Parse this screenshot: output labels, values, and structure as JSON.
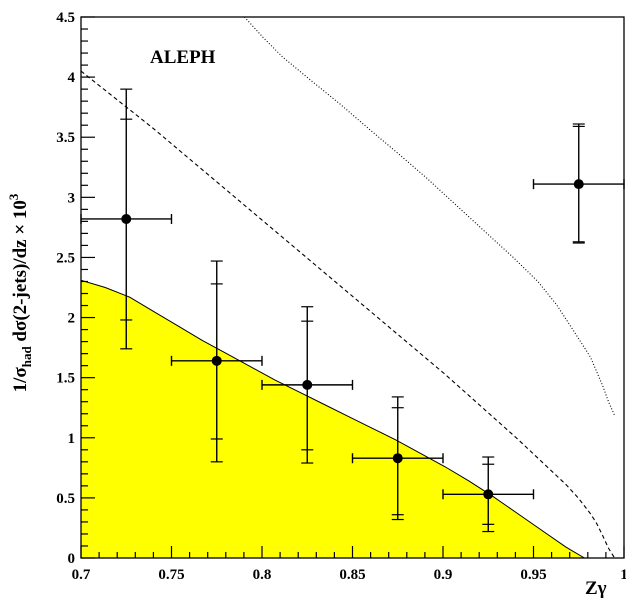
{
  "chart_data": {
    "type": "scatter",
    "title": "",
    "annotation": "ALEPH",
    "xlabel": "Zγ",
    "ylabel": "1/σ_had dσ(2-jets)/dz × 10^3",
    "ylabel_parts": {
      "prefix": "1/σ",
      "subscript": "had",
      "middle": " dσ(2-jets)/dz × 10",
      "superscript": "3"
    },
    "xlim": [
      0.7,
      1.0
    ],
    "ylim": [
      0,
      4.5
    ],
    "x_ticks": [
      "0.7",
      "0.75",
      "0.8",
      "0.85",
      "0.9",
      "0.95",
      "1"
    ],
    "x_tick_values": [
      0.7,
      0.75,
      0.8,
      0.85,
      0.9,
      0.95,
      1.0
    ],
    "y_ticks": [
      "0",
      "0.5",
      "1",
      "1.5",
      "2",
      "2.5",
      "3",
      "3.5",
      "4",
      "4.5"
    ],
    "y_tick_values": [
      0,
      0.5,
      1,
      1.5,
      2,
      2.5,
      3,
      3.5,
      4,
      4.5
    ],
    "grid": false,
    "data_points": [
      {
        "x": 0.725,
        "y": 2.82,
        "x_err": 0.025,
        "stat_lo": 1.98,
        "stat_hi": 3.65,
        "tot_lo": 1.74,
        "tot_hi": 3.9
      },
      {
        "x": 0.775,
        "y": 1.64,
        "x_err": 0.025,
        "stat_lo": 0.99,
        "stat_hi": 2.28,
        "tot_lo": 0.8,
        "tot_hi": 2.47
      },
      {
        "x": 0.825,
        "y": 1.44,
        "x_err": 0.025,
        "stat_lo": 0.9,
        "stat_hi": 1.97,
        "tot_lo": 0.79,
        "tot_hi": 2.09
      },
      {
        "x": 0.875,
        "y": 0.83,
        "x_err": 0.025,
        "stat_lo": 0.36,
        "stat_hi": 1.25,
        "tot_lo": 0.32,
        "tot_hi": 1.34
      },
      {
        "x": 0.925,
        "y": 0.53,
        "x_err": 0.025,
        "stat_lo": 0.28,
        "stat_hi": 0.78,
        "tot_lo": 0.22,
        "tot_hi": 0.84
      },
      {
        "x": 0.975,
        "y": 3.11,
        "x_err": 0.025,
        "stat_lo": 2.63,
        "stat_hi": 3.59,
        "tot_lo": 2.62,
        "tot_hi": 3.61
      }
    ],
    "filled_curve": {
      "color": "#ffff00",
      "x": [
        0.7,
        0.7134,
        0.7268,
        0.7402,
        0.7536,
        0.767,
        0.7804,
        0.7938,
        0.8072,
        0.8206,
        0.834,
        0.8474,
        0.8608,
        0.8742,
        0.8876,
        0.901,
        0.9144,
        0.9278,
        0.9412,
        0.9546,
        0.968,
        0.9781
      ],
      "y": [
        2.31,
        2.25,
        2.17,
        2.05,
        1.93,
        1.81,
        1.7,
        1.59,
        1.48,
        1.38,
        1.28,
        1.18,
        1.08,
        0.98,
        0.87,
        0.76,
        0.64,
        0.51,
        0.37,
        0.23,
        0.09,
        0.0
      ]
    },
    "dashed_curve": {
      "x": [
        0.7,
        0.7134,
        0.7268,
        0.7402,
        0.7536,
        0.767,
        0.7804,
        0.7938,
        0.8072,
        0.8206,
        0.834,
        0.8474,
        0.8608,
        0.8742,
        0.8876,
        0.901,
        0.9144,
        0.9278,
        0.9412,
        0.9546,
        0.968,
        0.9747,
        0.9814,
        0.9848,
        0.9881,
        0.9915,
        0.9948
      ],
      "y": [
        4.05,
        3.89,
        3.73,
        3.57,
        3.4,
        3.23,
        3.06,
        2.89,
        2.72,
        2.55,
        2.38,
        2.21,
        2.04,
        1.87,
        1.7,
        1.53,
        1.35,
        1.17,
        0.99,
        0.8,
        0.61,
        0.5,
        0.37,
        0.29,
        0.19,
        0.08,
        0.0
      ]
    },
    "dotted_curve": {
      "x": [
        0.7903,
        0.8006,
        0.8112,
        0.8272,
        0.8428,
        0.859,
        0.8748,
        0.891,
        0.9069,
        0.9228,
        0.9388,
        0.9524,
        0.9626,
        0.973,
        0.9815,
        0.9883,
        0.9917,
        0.995
      ],
      "y": [
        4.5,
        4.33,
        4.17,
        3.97,
        3.78,
        3.57,
        3.37,
        3.16,
        2.94,
        2.72,
        2.5,
        2.3,
        2.11,
        1.87,
        1.67,
        1.43,
        1.29,
        1.18
      ]
    }
  }
}
